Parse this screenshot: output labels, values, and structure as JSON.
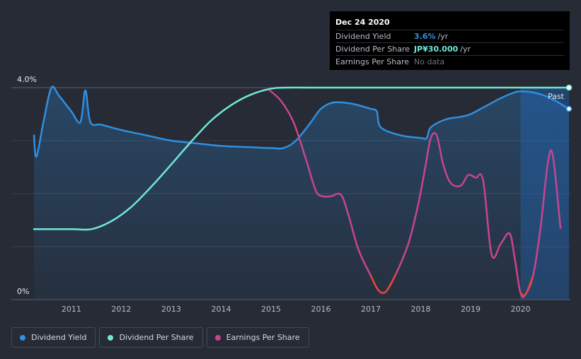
{
  "tooltip": {
    "date": "Dec 24 2020",
    "rows": [
      {
        "label": "Dividend Yield",
        "value": "3.6%",
        "unit": "/yr"
      },
      {
        "label": "Dividend Per Share",
        "value": "JP¥30.000",
        "unit": "/yr"
      },
      {
        "label": "Earnings Per Share",
        "value": "No data"
      }
    ]
  },
  "legend": [
    {
      "label": "Dividend Yield",
      "color": "#2f8fe0"
    },
    {
      "label": "Dividend Per Share",
      "color": "#6fe8d5"
    },
    {
      "label": "Earnings Per Share",
      "color": "#c9448f"
    }
  ],
  "chart_data": {
    "type": "line",
    "y_tick_labels": [
      "4.0%",
      "0%"
    ],
    "ylim": [
      0,
      4.0
    ],
    "xlim": [
      2010.25,
      2020.97
    ],
    "x_tick_labels": [
      "2011",
      "2012",
      "2013",
      "2014",
      "2015",
      "2016",
      "2017",
      "2018",
      "2019",
      "2020"
    ],
    "past_label": "Past",
    "grid": true,
    "series": [
      {
        "name": "Dividend Yield",
        "color": "#2f8fe0",
        "points": [
          [
            2010.25,
            3.1
          ],
          [
            2010.3,
            2.7
          ],
          [
            2010.45,
            3.4
          ],
          [
            2010.6,
            4.0
          ],
          [
            2010.75,
            3.85
          ],
          [
            2011.0,
            3.55
          ],
          [
            2011.18,
            3.35
          ],
          [
            2011.28,
            3.95
          ],
          [
            2011.38,
            3.35
          ],
          [
            2011.6,
            3.3
          ],
          [
            2012.0,
            3.2
          ],
          [
            2012.5,
            3.1
          ],
          [
            2013.0,
            3.0
          ],
          [
            2013.5,
            2.95
          ],
          [
            2014.0,
            2.9
          ],
          [
            2014.5,
            2.88
          ],
          [
            2015.0,
            2.86
          ],
          [
            2015.25,
            2.86
          ],
          [
            2015.5,
            3.0
          ],
          [
            2015.8,
            3.35
          ],
          [
            2016.0,
            3.6
          ],
          [
            2016.25,
            3.72
          ],
          [
            2016.6,
            3.7
          ],
          [
            2017.0,
            3.6
          ],
          [
            2017.12,
            3.55
          ],
          [
            2017.2,
            3.25
          ],
          [
            2017.6,
            3.1
          ],
          [
            2018.0,
            3.05
          ],
          [
            2018.12,
            3.05
          ],
          [
            2018.2,
            3.25
          ],
          [
            2018.5,
            3.4
          ],
          [
            2018.8,
            3.45
          ],
          [
            2019.0,
            3.5
          ],
          [
            2019.3,
            3.65
          ],
          [
            2019.6,
            3.8
          ],
          [
            2019.85,
            3.9
          ],
          [
            2020.0,
            3.93
          ],
          [
            2020.3,
            3.9
          ],
          [
            2020.6,
            3.8
          ],
          [
            2020.97,
            3.6
          ]
        ]
      },
      {
        "name": "Dividend Per Share",
        "color": "#6fe8d5",
        "points": [
          [
            2010.25,
            1.33
          ],
          [
            2011.0,
            1.33
          ],
          [
            2011.4,
            1.33
          ],
          [
            2011.8,
            1.48
          ],
          [
            2012.2,
            1.75
          ],
          [
            2012.6,
            2.13
          ],
          [
            2013.0,
            2.55
          ],
          [
            2013.4,
            2.98
          ],
          [
            2013.8,
            3.38
          ],
          [
            2014.2,
            3.67
          ],
          [
            2014.6,
            3.87
          ],
          [
            2015.0,
            3.98
          ],
          [
            2015.3,
            4.0
          ],
          [
            2016.0,
            4.0
          ],
          [
            2017.0,
            4.0
          ],
          [
            2018.0,
            4.0
          ],
          [
            2019.0,
            4.0
          ],
          [
            2020.0,
            4.0
          ],
          [
            2020.97,
            4.0
          ]
        ]
      },
      {
        "name": "Earnings Per Share",
        "color": "#c9448f",
        "points": [
          [
            2014.97,
            3.95
          ],
          [
            2015.2,
            3.75
          ],
          [
            2015.45,
            3.35
          ],
          [
            2015.7,
            2.65
          ],
          [
            2015.9,
            2.05
          ],
          [
            2016.05,
            1.95
          ],
          [
            2016.2,
            1.95
          ],
          [
            2016.4,
            1.98
          ],
          [
            2016.55,
            1.6
          ],
          [
            2016.75,
            0.95
          ],
          [
            2017.0,
            0.45
          ],
          [
            2017.15,
            0.18
          ],
          [
            2017.3,
            0.15
          ],
          [
            2017.5,
            0.48
          ],
          [
            2017.75,
            1.05
          ],
          [
            2017.95,
            1.8
          ],
          [
            2018.1,
            2.55
          ],
          [
            2018.2,
            3.05
          ],
          [
            2018.32,
            3.1
          ],
          [
            2018.45,
            2.55
          ],
          [
            2018.6,
            2.2
          ],
          [
            2018.8,
            2.15
          ],
          [
            2018.95,
            2.35
          ],
          [
            2019.1,
            2.3
          ],
          [
            2019.25,
            2.25
          ],
          [
            2019.42,
            0.85
          ],
          [
            2019.6,
            1.05
          ],
          [
            2019.78,
            1.25
          ],
          [
            2019.88,
            0.8
          ],
          [
            2020.0,
            0.12
          ],
          [
            2020.1,
            0.1
          ],
          [
            2020.25,
            0.45
          ],
          [
            2020.4,
            1.35
          ],
          [
            2020.55,
            2.6
          ],
          [
            2020.65,
            2.7
          ],
          [
            2020.8,
            1.35
          ]
        ]
      }
    ]
  }
}
